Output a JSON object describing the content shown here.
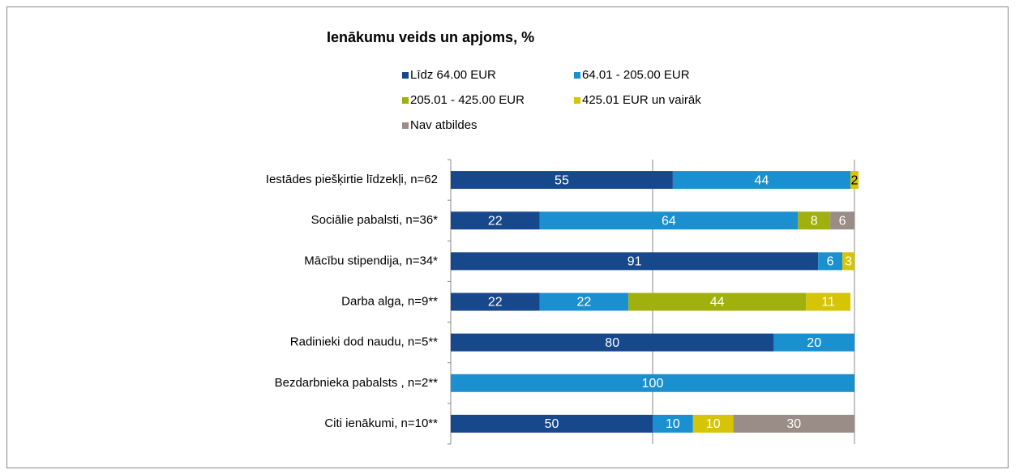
{
  "chart_data": {
    "type": "stacked-bar-horizontal",
    "title": "Ienākumu veids un apjoms, %",
    "categories": [
      "Iestādes piešķirtie līdzekļi, n=62",
      "Sociālie pabalsti, n=36*",
      "Mācību stipendija, n=34*",
      "Darba alga, n=9**",
      "Radinieki dod naudu, n=5**",
      "Bezdarbnieka pabalsts , n=2**",
      "Citi ienākumi, n=10**"
    ],
    "series": [
      {
        "name": "Līdz 64.00 EUR",
        "color": "#17488c",
        "values": [
          55,
          22,
          91,
          22,
          80,
          null,
          50
        ]
      },
      {
        "name": "64.01 - 205.00 EUR",
        "color": "#1b90d0",
        "values": [
          44,
          64,
          6,
          22,
          20,
          100,
          10
        ]
      },
      {
        "name": "205.01 - 425.00 EUR",
        "color": "#a0b00c",
        "values": [
          null,
          8,
          null,
          44,
          null,
          null,
          null
        ]
      },
      {
        "name": "425.01 EUR un vairāk",
        "color": "#d6c406",
        "values": [
          2,
          null,
          3,
          11,
          null,
          null,
          10
        ]
      },
      {
        "name": "Nav atbildes",
        "color": "#9a8c86",
        "values": [
          null,
          6,
          null,
          null,
          null,
          null,
          30
        ]
      }
    ],
    "xlim": [
      0,
      100
    ],
    "xticks": [
      0,
      50,
      100
    ],
    "grid": true
  }
}
